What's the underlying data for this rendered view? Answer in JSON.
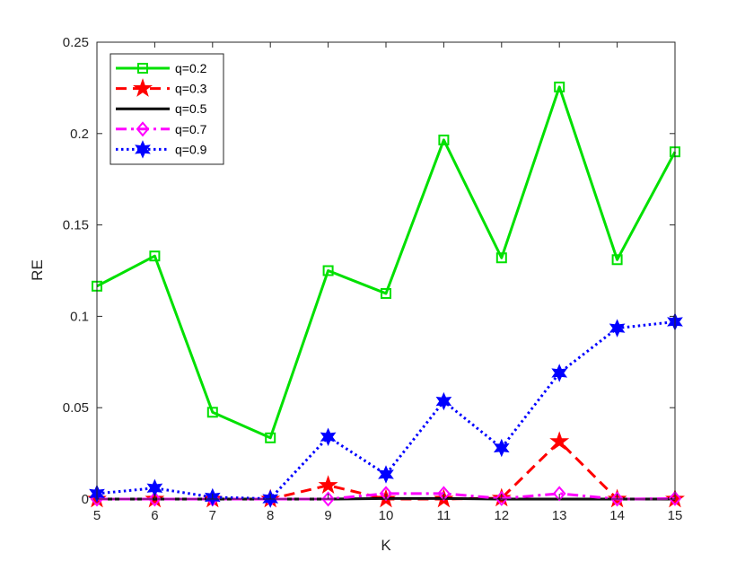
{
  "chart_data": {
    "type": "line",
    "title": "",
    "xlabel": "K",
    "ylabel": "RE",
    "xlim": [
      5,
      15
    ],
    "ylim": [
      0,
      0.25
    ],
    "xticks": [
      "5",
      "6",
      "7",
      "8",
      "9",
      "10",
      "11",
      "12",
      "13",
      "14",
      "15"
    ],
    "yticks": [
      "0",
      "0.05",
      "0.1",
      "0.15",
      "0.2",
      "0.25"
    ],
    "grid": false,
    "legend_position": "top-left",
    "x": [
      5,
      6,
      7,
      8,
      9,
      10,
      11,
      12,
      13,
      14,
      15
    ],
    "series": [
      {
        "name": "q=0.2",
        "color": "#00e000",
        "dash": "solid",
        "marker": "square",
        "values": [
          0.1165,
          0.133,
          0.0475,
          0.0335,
          0.125,
          0.1125,
          0.1965,
          0.132,
          0.2255,
          0.131,
          0.19
        ]
      },
      {
        "name": "q=0.3",
        "color": "#ff0000",
        "dash": "dashed",
        "marker": "star5",
        "values": [
          0.0,
          0.0,
          0.0,
          0.0,
          0.0075,
          0.0,
          0.0,
          0.0005,
          0.0315,
          0.0,
          0.0
        ]
      },
      {
        "name": "q=0.5",
        "color": "#000000",
        "dash": "solid",
        "marker": "none",
        "values": [
          0.0,
          0.0,
          0.0,
          0.0,
          0.0,
          0.0003,
          0.0003,
          0.0,
          0.0,
          0.0,
          0.0
        ]
      },
      {
        "name": "q=0.7",
        "color": "#ff00ff",
        "dash": "dashdot",
        "marker": "diamond",
        "values": [
          0.0,
          0.0,
          0.0,
          0.0,
          0.0,
          0.003,
          0.003,
          0.0003,
          0.003,
          0.0,
          0.0003
        ]
      },
      {
        "name": "q=0.9",
        "color": "#0000ff",
        "dash": "dotted",
        "marker": "star6",
        "values": [
          0.003,
          0.006,
          0.001,
          0.0002,
          0.034,
          0.0135,
          0.0535,
          0.028,
          0.069,
          0.0935,
          0.097
        ]
      }
    ]
  }
}
